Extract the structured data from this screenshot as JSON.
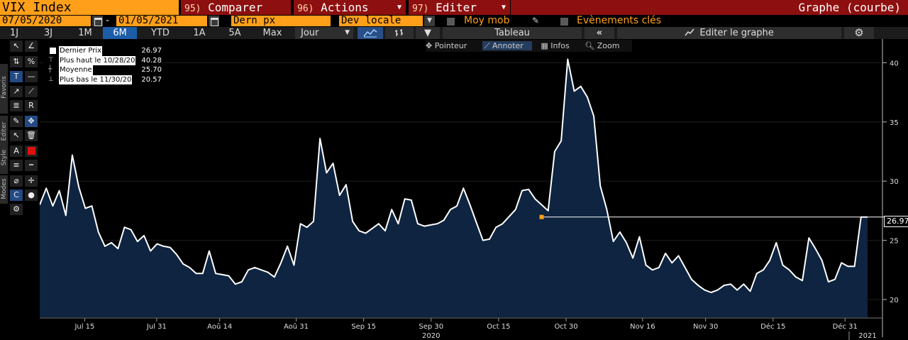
{
  "header": {
    "security": "VIX Index",
    "menus": [
      {
        "num": "95)",
        "label": "Comparer"
      },
      {
        "num": "96)",
        "label": "Actions"
      },
      {
        "num": "97)",
        "label": "Editer"
      }
    ],
    "graph_title": "Graphe (courbe)"
  },
  "settings": {
    "start_date": "07/05/2020",
    "end_date": "01/05/2021",
    "price_field": "Dern px",
    "currency": "Dev locale",
    "moving_avg_label": "Moy mob",
    "events_label": "Evènements clés"
  },
  "periods": [
    "1J",
    "3J",
    "1M",
    "6M",
    "YTD",
    "1A",
    "5A",
    "Max"
  ],
  "active_period": "6M",
  "frequency": "Jour",
  "toolbar": {
    "table_label": "Tableau",
    "edit_graph_label": "Editer le graphe",
    "collapse_glyph": "«"
  },
  "side_tabs": [
    "Favoris",
    "Editer",
    "Style",
    "Modes"
  ],
  "chart_toolbar": [
    "Pointeur",
    "Annoter",
    "Infos",
    "Zoom"
  ],
  "legend": [
    {
      "label": "Dernier Prix",
      "value": "26.97"
    },
    {
      "label": "Plus haut le 10/28/20",
      "value": "40.28"
    },
    {
      "label": "Moyenne",
      "value": "25.70"
    },
    {
      "label": "Plus bas le 11/30/20",
      "value": "20.57"
    }
  ],
  "last_price_flag": "26.97",
  "colors": {
    "accent": "#ff9f1a",
    "menu_bg": "#8e0f0f",
    "active": "#1c5da8",
    "area_fill": "#0e2440",
    "line": "#ffffff"
  },
  "chart_data": {
    "type": "area",
    "title": "",
    "ylim": [
      18.5,
      42
    ],
    "y_ticks": [
      20,
      25,
      30,
      35,
      40
    ],
    "x_ticks": [
      "Jul 15",
      "Jul 31",
      "Aoû 14",
      "Aoû 31",
      "Sep 15",
      "Sep 30",
      "Oct 15",
      "Oct 30",
      "Nov 16",
      "Nov 30",
      "Déc 15",
      "Déc 31"
    ],
    "x_tick_days": [
      10,
      26,
      40,
      57,
      72,
      87,
      102,
      117,
      134,
      148,
      163,
      179
    ],
    "year_labels": [
      {
        "text": "2020",
        "day": 87
      },
      {
        "text": "2021",
        "day": 184
      }
    ],
    "x_domain_days": [
      0,
      187
    ],
    "series": [
      {
        "points": [
          [
            0,
            28.0
          ],
          [
            1,
            29.4
          ],
          [
            2,
            27.9
          ],
          [
            3,
            29.2
          ],
          [
            4,
            27.1
          ],
          [
            5,
            32.2
          ],
          [
            6,
            29.5
          ],
          [
            7,
            27.7
          ],
          [
            8,
            27.9
          ],
          [
            9,
            25.7
          ],
          [
            10,
            24.5
          ],
          [
            11,
            24.8
          ],
          [
            12,
            24.3
          ],
          [
            13,
            26.1
          ],
          [
            14,
            25.9
          ],
          [
            15,
            24.9
          ],
          [
            16,
            25.4
          ],
          [
            17,
            24.1
          ],
          [
            18,
            24.7
          ],
          [
            19,
            24.5
          ],
          [
            20,
            24.4
          ],
          [
            21,
            23.8
          ],
          [
            22,
            23.0
          ],
          [
            23,
            22.7
          ],
          [
            24,
            22.2
          ],
          [
            25,
            22.2
          ],
          [
            26,
            24.1
          ],
          [
            27,
            22.2
          ],
          [
            28,
            22.1
          ],
          [
            29,
            22.0
          ],
          [
            30,
            21.3
          ],
          [
            31,
            21.5
          ],
          [
            32,
            22.5
          ],
          [
            33,
            22.7
          ],
          [
            34,
            22.5
          ],
          [
            35,
            22.3
          ],
          [
            36,
            21.9
          ],
          [
            37,
            23.1
          ],
          [
            38,
            24.5
          ],
          [
            39,
            22.9
          ],
          [
            40,
            26.4
          ],
          [
            41,
            26.1
          ],
          [
            42,
            26.6
          ],
          [
            43,
            33.6
          ],
          [
            44,
            30.7
          ],
          [
            45,
            31.5
          ],
          [
            46,
            28.8
          ],
          [
            47,
            29.7
          ],
          [
            48,
            26.6
          ],
          [
            49,
            25.8
          ],
          [
            50,
            25.6
          ],
          [
            51,
            26.0
          ],
          [
            52,
            26.4
          ],
          [
            53,
            25.8
          ],
          [
            54,
            27.6
          ],
          [
            55,
            26.4
          ],
          [
            56,
            28.5
          ],
          [
            57,
            28.4
          ],
          [
            58,
            26.4
          ],
          [
            59,
            26.2
          ],
          [
            60,
            26.3
          ],
          [
            61,
            26.4
          ],
          [
            62,
            26.7
          ],
          [
            63,
            27.6
          ],
          [
            64,
            27.9
          ],
          [
            65,
            29.4
          ],
          [
            66,
            28.0
          ],
          [
            67,
            26.5
          ],
          [
            68,
            25.0
          ],
          [
            69,
            25.1
          ],
          [
            70,
            26.1
          ],
          [
            71,
            26.4
          ],
          [
            72,
            27.0
          ],
          [
            73,
            27.6
          ],
          [
            74,
            29.2
          ],
          [
            75,
            29.3
          ],
          [
            76,
            28.5
          ],
          [
            77,
            28.0
          ],
          [
            78,
            27.5
          ],
          [
            79,
            32.5
          ],
          [
            80,
            33.4
          ],
          [
            81,
            40.3
          ],
          [
            82,
            37.6
          ],
          [
            83,
            38.0
          ],
          [
            84,
            37.1
          ],
          [
            85,
            35.5
          ],
          [
            86,
            29.6
          ],
          [
            87,
            27.6
          ],
          [
            88,
            24.9
          ],
          [
            89,
            25.7
          ],
          [
            90,
            24.8
          ],
          [
            91,
            23.5
          ],
          [
            92,
            25.3
          ],
          [
            93,
            22.9
          ],
          [
            94,
            22.5
          ],
          [
            95,
            22.7
          ],
          [
            96,
            23.9
          ],
          [
            97,
            23.1
          ],
          [
            98,
            23.7
          ],
          [
            99,
            22.7
          ],
          [
            100,
            21.7
          ],
          [
            101,
            21.2
          ],
          [
            102,
            20.8
          ],
          [
            103,
            20.6
          ],
          [
            104,
            20.8
          ],
          [
            105,
            21.2
          ],
          [
            106,
            21.3
          ],
          [
            107,
            20.8
          ],
          [
            108,
            21.3
          ],
          [
            109,
            20.7
          ],
          [
            110,
            22.2
          ],
          [
            111,
            22.5
          ],
          [
            112,
            23.3
          ],
          [
            113,
            24.8
          ],
          [
            114,
            22.9
          ],
          [
            115,
            22.5
          ],
          [
            116,
            21.9
          ],
          [
            117,
            21.6
          ],
          [
            118,
            25.2
          ],
          [
            119,
            24.3
          ],
          [
            120,
            23.3
          ],
          [
            121,
            21.5
          ],
          [
            122,
            21.7
          ],
          [
            123,
            23.1
          ],
          [
            124,
            22.8
          ],
          [
            125,
            22.8
          ],
          [
            126,
            26.97
          ],
          [
            127,
            26.97
          ]
        ]
      }
    ],
    "last_value": 26.97,
    "reference_line_start_index": 77
  }
}
